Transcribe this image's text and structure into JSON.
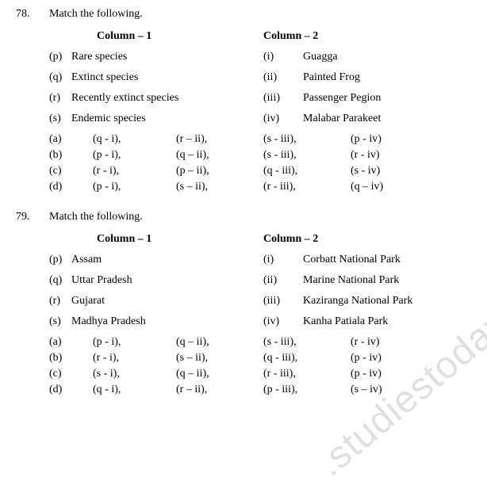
{
  "watermark": ".studiestoday",
  "questions": [
    {
      "number": "78.",
      "prompt": "Match the following.",
      "col1_header": "Column – 1",
      "col2_header": "Column – 2",
      "pairs": [
        {
          "l1": "(p)",
          "t1": "Rare species",
          "l2": "(i)",
          "t2": "Guagga"
        },
        {
          "l1": "(q)",
          "t1": "Extinct species",
          "l2": "(ii)",
          "t2": "Painted Frog"
        },
        {
          "l1": "(r)",
          "t1": "Recently extinct species",
          "l2": "(iii)",
          "t2": "Passenger Pegion"
        },
        {
          "l1": "(s)",
          "t1": "Endemic species",
          "l2": "(iv)",
          "t2": "Malabar Parakeet"
        }
      ],
      "options": [
        {
          "label": "(a)",
          "p1": "(q - i),",
          "p2": "(r – ii),",
          "p3": "(s - iii),",
          "p4": "(p - iv)"
        },
        {
          "label": "(b)",
          "p1": "(p - i),",
          "p2": "(q – ii),",
          "p3": "(s - iii),",
          "p4": "(r - iv)"
        },
        {
          "label": "(c)",
          "p1": "(r - i),",
          "p2": "(p – ii),",
          "p3": "(q - iii),",
          "p4": "(s - iv)"
        },
        {
          "label": "(d)",
          "p1": "(p - i),",
          "p2": "(s – ii),",
          "p3": "(r - iii),",
          "p4": "(q – iv)"
        }
      ]
    },
    {
      "number": "79.",
      "prompt": "Match the following.",
      "col1_header": "Column – 1",
      "col2_header": "Column – 2",
      "pairs": [
        {
          "l1": "(p)",
          "t1": "Assam",
          "l2": "(i)",
          "t2": "Corbatt National Park"
        },
        {
          "l1": "(q)",
          "t1": "Uttar Pradesh",
          "l2": "(ii)",
          "t2": "Marine National Park"
        },
        {
          "l1": "(r)",
          "t1": "Gujarat",
          "l2": "(iii)",
          "t2": "Kaziranga National Park"
        },
        {
          "l1": "(s)",
          "t1": "Madhya Pradesh",
          "l2": "(iv)",
          "t2": "Kanha Patiala Park"
        }
      ],
      "options": [
        {
          "label": "(a)",
          "p1": "(p - i),",
          "p2": "(q – ii),",
          "p3": "(s - iii),",
          "p4": "(r - iv)"
        },
        {
          "label": "(b)",
          "p1": "(r - i),",
          "p2": "(s – ii),",
          "p3": "(q - iii),",
          "p4": "(p - iv)"
        },
        {
          "label": "(c)",
          "p1": "(s - i),",
          "p2": "(q – ii),",
          "p3": "(r - iii),",
          "p4": "(p - iv)"
        },
        {
          "label": "(d)",
          "p1": "(q - i),",
          "p2": "(r – ii),",
          "p3": "(p - iii),",
          "p4": "(s – iv)"
        }
      ]
    }
  ]
}
